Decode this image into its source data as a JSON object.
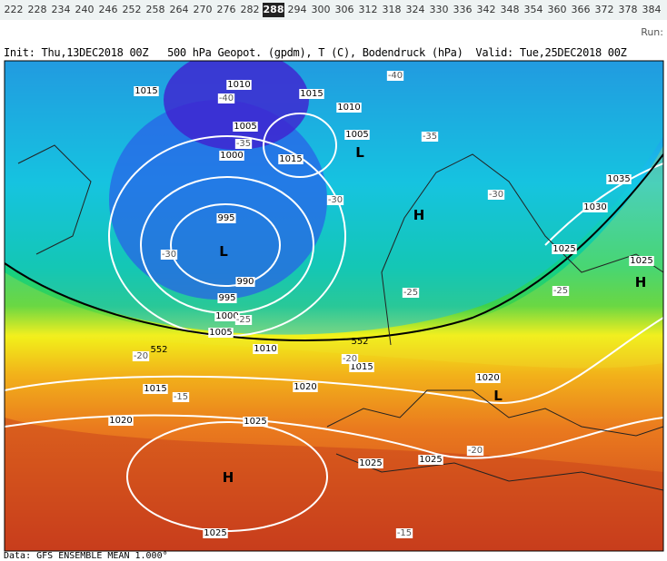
{
  "steps": [
    "222",
    "228",
    "234",
    "240",
    "246",
    "252",
    "258",
    "264",
    "270",
    "276",
    "282",
    "288",
    "294",
    "300",
    "306",
    "312",
    "318",
    "324",
    "330",
    "336",
    "342",
    "348",
    "354",
    "360",
    "366",
    "372",
    "378",
    "384"
  ],
  "selected_index": 11,
  "run_label": "Run:",
  "header": {
    "init": "Init: Thu,13DEC2018 00Z",
    "fields": "500 hPa Geopot. (gpdm), T (C), Bodendruck (hPa)",
    "valid": "Valid: Tue,25DEC2018 00Z"
  },
  "map": {
    "isobar_labels": [
      "1010",
      "1015",
      "1015",
      "1010",
      "1005",
      "1005",
      "1015",
      "1000",
      "995",
      "990",
      "995",
      "1000",
      "1005",
      "1010",
      "1015",
      "1020",
      "1015",
      "1020",
      "1020",
      "1025",
      "1025",
      "1025",
      "1025",
      "1035",
      "1030",
      "1025",
      "1025"
    ],
    "temp_labels": [
      "-40",
      "-40",
      "-35",
      "-35",
      "-30",
      "-30",
      "-30",
      "-25",
      "-25",
      "-25",
      "-20",
      "-20",
      "-15",
      "-20",
      "-15"
    ],
    "geopot_labels": [
      "552",
      "552"
    ],
    "pressure_centers": [
      "L",
      "L",
      "H",
      "H",
      "L",
      "H"
    ]
  },
  "footer": "Data: GFS ENSEMBLE MEAN 1.000°"
}
